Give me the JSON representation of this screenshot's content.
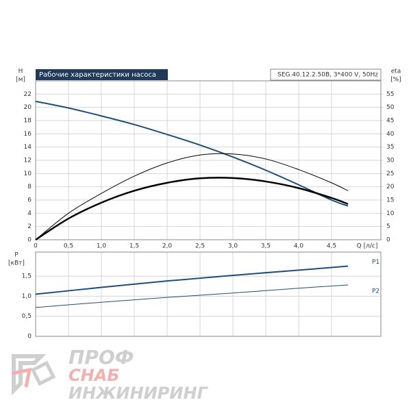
{
  "chart_data": [
    {
      "type": "line",
      "title": "Рабочие характеристики насоса",
      "subtitle": "SEG.40.12.2.50B, 3*400 V, 50Hz",
      "ylabel": "H",
      "yunit": "[м]",
      "y2label": "eta",
      "y2unit": "[%]",
      "xlabel": "Q [л/с]",
      "x": [
        0,
        0.5,
        1,
        1.5,
        2,
        2.5,
        3,
        3.5,
        4,
        4.5,
        4.75
      ],
      "xlim": [
        0,
        5.25
      ],
      "xticks": [
        0,
        {
          "value": 0.5,
          "label": "0,5"
        },
        {
          "value": 1,
          "label": "1,0"
        },
        {
          "value": 1.5,
          "label": "1,5"
        },
        {
          "value": 2,
          "label": "2,0"
        },
        {
          "value": 2.5,
          "label": "2,5"
        },
        {
          "value": 3,
          "label": "3,0"
        },
        {
          "value": 3.5,
          "label": "3,5"
        },
        {
          "value": 4,
          "label": "4,0"
        },
        {
          "value": 4.5,
          "label": "4,5"
        }
      ],
      "ylim": [
        0,
        24
      ],
      "yticks": [
        0,
        2,
        4,
        6,
        8,
        10,
        12,
        14,
        16,
        18,
        20,
        22
      ],
      "y2lim": [
        0,
        60
      ],
      "y2ticks": [
        0,
        5,
        10,
        15,
        20,
        25,
        30,
        35,
        40,
        45,
        50,
        55
      ],
      "grid": true,
      "series": [
        {
          "color": "#1f4e79",
          "values": [
            20.9,
            19.9,
            18.7,
            17.4,
            15.9,
            14.3,
            12.5,
            10.5,
            8.3,
            6.0,
            5.1
          ]
        },
        {
          "color": "#000000",
          "axis": "y2",
          "values": [
            0,
            10,
            17.5,
            24,
            29,
            32,
            32.4,
            30.5,
            26.5,
            21.5,
            18.5
          ]
        },
        {
          "color": "#000000",
          "axis": "y2",
          "values": [
            0,
            8,
            14,
            18.5,
            21.5,
            23.2,
            23.3,
            22,
            19.5,
            15.8,
            13.5
          ]
        }
      ]
    },
    {
      "type": "line",
      "ylabel": "P",
      "yunit": "[кВт]",
      "x": [
        0,
        1,
        2,
        3,
        4,
        4.75
      ],
      "xlim": [
        0,
        5.25
      ],
      "ylim": [
        0,
        2.1
      ],
      "yticks": [
        0,
        {
          "value": 0.5,
          "label": "0,5"
        },
        {
          "value": 1,
          "label": "1,0"
        },
        {
          "value": 1.5,
          "label": "1,5"
        }
      ],
      "grid": true,
      "series": [
        {
          "name": "P1",
          "color": "#1f4e79",
          "values": [
            1.05,
            1.22,
            1.38,
            1.52,
            1.65,
            1.75
          ]
        },
        {
          "name": "P2",
          "color": "#1f4e79",
          "values": [
            0.72,
            0.85,
            0.97,
            1.08,
            1.2,
            1.28
          ]
        }
      ]
    }
  ],
  "logo": {
    "line1": "ПРОФ",
    "line2": "СНАБ",
    "line3": "ИНЖИНИРИНГ"
  }
}
